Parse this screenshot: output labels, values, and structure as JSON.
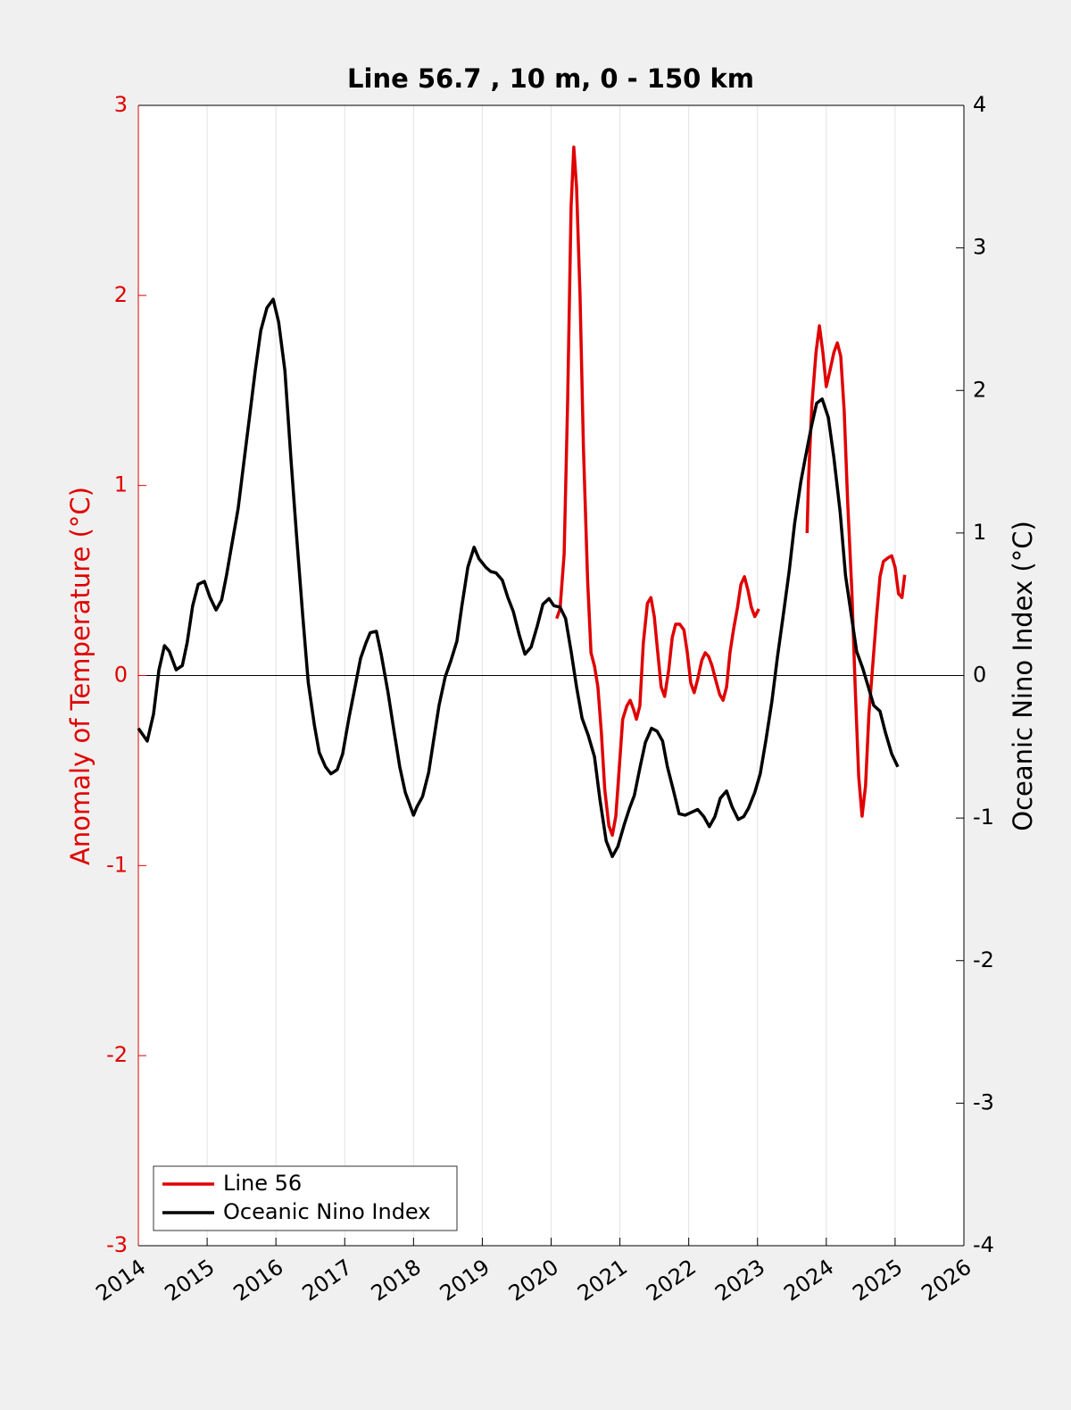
{
  "chart_data": {
    "type": "line",
    "title": "Line 56.7 , 10 m, 0 - 150 km",
    "y_label": "Anomaly of Temperature (°C)",
    "y2_label": "Oceanic Nino Index (°C)",
    "xlim": [
      2014,
      2026
    ],
    "xticks": [
      2014,
      2015,
      2016,
      2017,
      2018,
      2019,
      2020,
      2021,
      2022,
      2023,
      2024,
      2025,
      2026
    ],
    "ylim": [
      -3,
      3
    ],
    "yticks": [
      -3,
      -2,
      -1,
      0,
      1,
      2,
      3
    ],
    "y2lim": [
      -4,
      4
    ],
    "y2ticks": [
      -4,
      -3,
      -2,
      -1,
      0,
      1,
      2,
      3,
      4
    ],
    "grid": "x",
    "legend": "lower left",
    "series": [
      {
        "name": "Line 56",
        "color": "#e00000",
        "axis": "y",
        "x": [
          2020.08,
          2020.13,
          2020.19,
          2020.24,
          2020.29,
          2020.33,
          2020.37,
          2020.42,
          2020.47,
          2020.53,
          2020.58,
          2020.63,
          2020.68,
          2020.73,
          2020.78,
          2020.84,
          2020.89,
          2020.94,
          2020.99,
          2021.04,
          2021.1,
          2021.15,
          2021.2,
          2021.24,
          2021.29,
          2021.34,
          2021.4,
          2021.45,
          2021.5,
          2021.55,
          2021.6,
          2021.65,
          2021.71,
          2021.76,
          2021.81,
          2021.87,
          2021.93,
          2021.98,
          2022.03,
          2022.08,
          2022.13,
          2022.19,
          2022.24,
          2022.29,
          2022.34,
          2022.39,
          2022.45,
          2022.5,
          2022.55,
          2022.6,
          2022.65,
          2022.71,
          2022.76,
          2022.81,
          2022.86,
          2022.91,
          2022.96,
          2023.02,
          2023.4,
          2023.72,
          2023.74,
          2023.79,
          2023.85,
          2023.9,
          2023.95,
          2024.0,
          2024.05,
          2024.11,
          2024.16,
          2024.21,
          2024.26,
          2024.31,
          2024.37,
          2024.42,
          2024.47,
          2024.52,
          2024.57,
          2024.62,
          2024.68,
          2024.73,
          2024.78,
          2024.83,
          2024.9,
          2024.95,
          2025.0,
          2025.05,
          2025.1,
          2025.14
        ],
        "values": [
          0.3,
          0.35,
          0.64,
          1.44,
          2.47,
          2.78,
          2.57,
          2.0,
          1.2,
          0.5,
          0.12,
          0.05,
          -0.06,
          -0.3,
          -0.6,
          -0.79,
          -0.84,
          -0.74,
          -0.49,
          -0.23,
          -0.16,
          -0.13,
          -0.18,
          -0.23,
          -0.16,
          0.17,
          0.38,
          0.41,
          0.31,
          0.12,
          -0.06,
          -0.11,
          0.03,
          0.2,
          0.27,
          0.27,
          0.24,
          0.12,
          -0.04,
          -0.09,
          -0.02,
          0.08,
          0.12,
          0.1,
          0.05,
          -0.02,
          -0.1,
          -0.13,
          -0.06,
          0.12,
          0.24,
          0.36,
          0.48,
          0.52,
          0.45,
          0.36,
          0.31,
          0.35,
          null,
          0.75,
          1.02,
          1.42,
          1.7,
          1.84,
          1.7,
          1.52,
          1.6,
          1.7,
          1.75,
          1.68,
          1.39,
          0.92,
          0.45,
          -0.06,
          -0.53,
          -0.74,
          -0.58,
          -0.2,
          0.08,
          0.31,
          0.52,
          0.6,
          0.62,
          0.63,
          0.57,
          0.43,
          0.41,
          0.53
        ]
      },
      {
        "name": "Oceanic Nino Index",
        "color": "#000000",
        "axis": "y2",
        "x": [
          2014.0,
          2014.13,
          2014.22,
          2014.3,
          2014.38,
          2014.45,
          2014.55,
          2014.64,
          2014.71,
          2014.79,
          2014.87,
          2014.96,
          2015.04,
          2015.13,
          2015.21,
          2015.28,
          2015.36,
          2015.45,
          2015.53,
          2015.62,
          2015.7,
          2015.78,
          2015.87,
          2015.96,
          2016.04,
          2016.13,
          2016.22,
          2016.3,
          2016.39,
          2016.47,
          2016.56,
          2016.63,
          2016.72,
          2016.8,
          2016.89,
          2016.97,
          2017.06,
          2017.15,
          2017.23,
          2017.31,
          2017.37,
          2017.46,
          2017.53,
          2017.63,
          2017.71,
          2017.8,
          2017.88,
          2018.0,
          2018.05,
          2018.13,
          2018.22,
          2018.29,
          2018.37,
          2018.46,
          2018.54,
          2018.63,
          2018.7,
          2018.79,
          2018.88,
          2018.95,
          2019.05,
          2019.12,
          2019.2,
          2019.29,
          2019.37,
          2019.45,
          2019.54,
          2019.62,
          2019.71,
          2019.8,
          2019.88,
          2019.97,
          2020.04,
          2020.13,
          2020.21,
          2020.29,
          2020.37,
          2020.45,
          2020.54,
          2020.63,
          2020.71,
          2020.8,
          2020.89,
          2020.97,
          2021.06,
          2021.14,
          2021.21,
          2021.29,
          2021.37,
          2021.46,
          2021.54,
          2021.62,
          2021.69,
          2021.78,
          2021.86,
          2021.95,
          2022.04,
          2022.13,
          2022.22,
          2022.3,
          2022.38,
          2022.46,
          2022.55,
          2022.63,
          2022.72,
          2022.8,
          2022.87,
          2022.96,
          2023.04,
          2023.12,
          2023.21,
          2023.29,
          2023.37,
          2023.46,
          2023.54,
          2023.63,
          2023.7,
          2023.78,
          2023.86,
          2023.94,
          2024.03,
          2024.11,
          2024.2,
          2024.28,
          2024.37,
          2024.44,
          2024.53,
          2024.61,
          2024.69,
          2024.78,
          2024.86,
          2024.95,
          2025.04
        ],
        "values": [
          -0.37,
          -0.46,
          -0.27,
          0.04,
          0.21,
          0.17,
          0.04,
          0.07,
          0.23,
          0.49,
          0.64,
          0.66,
          0.55,
          0.46,
          0.53,
          0.7,
          0.92,
          1.17,
          1.48,
          1.83,
          2.14,
          2.42,
          2.58,
          2.64,
          2.48,
          2.14,
          1.51,
          0.98,
          0.42,
          -0.05,
          -0.35,
          -0.54,
          -0.64,
          -0.69,
          -0.66,
          -0.55,
          -0.3,
          -0.08,
          0.12,
          0.23,
          0.3,
          0.31,
          0.15,
          -0.12,
          -0.37,
          -0.64,
          -0.82,
          -0.98,
          -0.92,
          -0.85,
          -0.68,
          -0.46,
          -0.21,
          -0.01,
          0.1,
          0.24,
          0.48,
          0.76,
          0.9,
          0.82,
          0.76,
          0.73,
          0.72,
          0.67,
          0.55,
          0.45,
          0.28,
          0.15,
          0.2,
          0.35,
          0.5,
          0.54,
          0.49,
          0.48,
          0.4,
          0.17,
          -0.08,
          -0.3,
          -0.42,
          -0.57,
          -0.87,
          -1.16,
          -1.27,
          -1.2,
          -1.05,
          -0.93,
          -0.84,
          -0.65,
          -0.47,
          -0.37,
          -0.39,
          -0.46,
          -0.64,
          -0.81,
          -0.97,
          -0.98,
          -0.96,
          -0.94,
          -0.99,
          -1.06,
          -0.99,
          -0.86,
          -0.81,
          -0.92,
          -1.01,
          -0.99,
          -0.93,
          -0.82,
          -0.69,
          -0.46,
          -0.18,
          0.13,
          0.41,
          0.73,
          1.07,
          1.36,
          1.54,
          1.74,
          1.91,
          1.94,
          1.81,
          1.53,
          1.15,
          0.7,
          0.4,
          0.17,
          0.05,
          -0.08,
          -0.21,
          -0.25,
          -0.4,
          -0.55,
          -0.64
        ]
      }
    ]
  }
}
